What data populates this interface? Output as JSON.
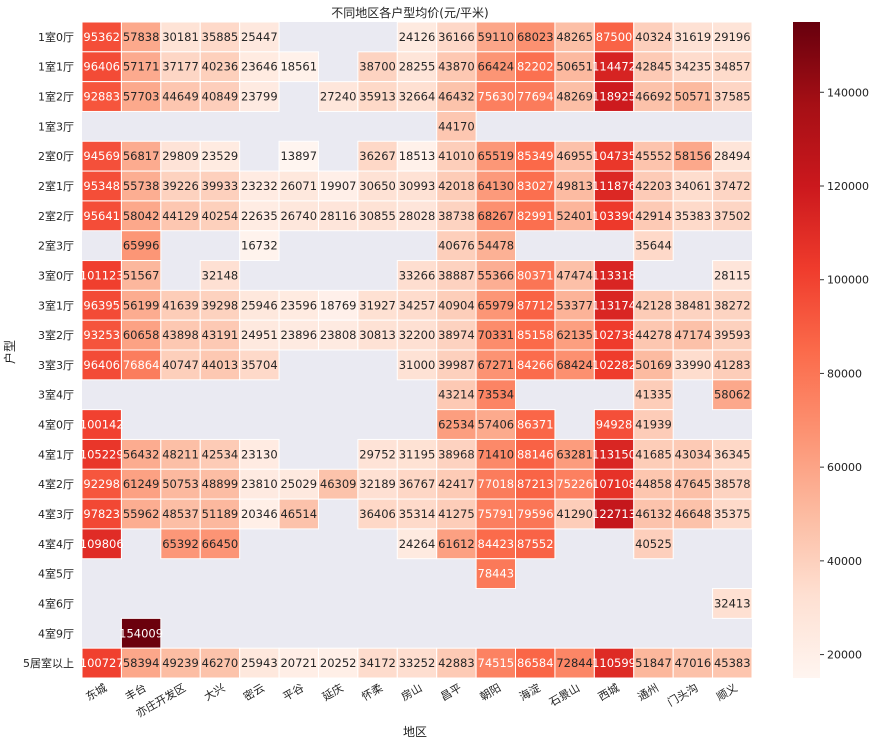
{
  "chart_data": {
    "type": "heatmap",
    "title": "不同地区各户型均价(元/平米)",
    "xlabel": "地区",
    "ylabel": "户型",
    "colormap": "Reds",
    "missing_color": "#eaeaf2",
    "colorbar_range": [
      15000,
      155000
    ],
    "colorbar_ticks": [
      20000,
      40000,
      60000,
      80000,
      100000,
      120000,
      140000
    ],
    "columns": [
      "东城",
      "丰台",
      "亦庄开发区",
      "大兴",
      "密云",
      "平谷",
      "延庆",
      "怀柔",
      "房山",
      "昌平",
      "朝阳",
      "海淀",
      "石景山",
      "西城",
      "通州",
      "门头沟",
      "顺义"
    ],
    "rows": [
      "1室0厅",
      "1室1厅",
      "1室2厅",
      "1室3厅",
      "2室0厅",
      "2室1厅",
      "2室2厅",
      "2室3厅",
      "3室0厅",
      "3室1厅",
      "3室2厅",
      "3室3厅",
      "3室4厅",
      "4室0厅",
      "4室1厅",
      "4室2厅",
      "4室3厅",
      "4室4厅",
      "4室5厅",
      "4室6厅",
      "4室9厅",
      "5居室以上"
    ],
    "values": [
      [
        95362,
        57838,
        30181,
        35885,
        25447,
        null,
        null,
        null,
        24126,
        36166,
        59110,
        68023,
        48265,
        87500,
        40324,
        31619,
        29196
      ],
      [
        96406,
        57171,
        37177,
        40236,
        23646,
        18561,
        null,
        38700,
        28255,
        43870,
        66424,
        82202,
        50651,
        114472,
        42845,
        34235,
        34857
      ],
      [
        92883,
        57703,
        44649,
        40849,
        23799,
        null,
        27240,
        35913,
        32664,
        46432,
        75630,
        77694,
        48269,
        118925,
        46692,
        50571,
        37585
      ],
      [
        null,
        null,
        null,
        null,
        null,
        null,
        null,
        null,
        null,
        44170,
        null,
        null,
        null,
        null,
        null,
        null,
        null
      ],
      [
        94569,
        56817,
        29809,
        23529,
        null,
        13897,
        null,
        36267,
        18513,
        41010,
        65519,
        85349,
        46955,
        104735,
        45552,
        58156,
        28494
      ],
      [
        95348,
        55738,
        39226,
        39933,
        23232,
        26071,
        19907,
        30650,
        30993,
        42018,
        64130,
        83027,
        49813,
        111876,
        42203,
        34061,
        37472
      ],
      [
        95641,
        58042,
        44129,
        40254,
        22635,
        26740,
        28116,
        30855,
        28028,
        38738,
        68267,
        82991,
        52401,
        103390,
        42914,
        35383,
        37502
      ],
      [
        null,
        65996,
        null,
        null,
        16732,
        null,
        null,
        null,
        null,
        40676,
        54478,
        null,
        null,
        null,
        35644,
        null,
        null
      ],
      [
        101123,
        51567,
        null,
        32148,
        null,
        null,
        null,
        null,
        33266,
        38887,
        55366,
        80371,
        47474,
        113318,
        null,
        null,
        28115
      ],
      [
        96395,
        56199,
        41639,
        39298,
        25946,
        23596,
        18769,
        31927,
        34257,
        40904,
        65979,
        87712,
        53377,
        113174,
        42128,
        38481,
        38272
      ],
      [
        93253,
        60658,
        43898,
        43191,
        24951,
        23896,
        23808,
        30813,
        32200,
        38974,
        70331,
        85158,
        62135,
        102738,
        44278,
        47174,
        39593
      ],
      [
        96406,
        76864,
        40747,
        44013,
        35704,
        null,
        null,
        null,
        31000,
        39987,
        67271,
        84266,
        68424,
        102282,
        50169,
        33990,
        41283
      ],
      [
        null,
        null,
        null,
        null,
        null,
        null,
        null,
        null,
        null,
        43214,
        73534,
        null,
        null,
        null,
        41335,
        null,
        58062
      ],
      [
        100142,
        null,
        null,
        null,
        null,
        null,
        null,
        null,
        null,
        62534,
        57406,
        86371,
        null,
        94928,
        41939,
        null,
        null
      ],
      [
        105229,
        56432,
        48211,
        42534,
        23130,
        null,
        null,
        29752,
        31195,
        38968,
        71410,
        88146,
        63281,
        113150,
        41685,
        43034,
        36345
      ],
      [
        92298,
        61249,
        50753,
        48899,
        23810,
        25029,
        46309,
        32189,
        36767,
        42417,
        77018,
        87213,
        75226,
        107108,
        44858,
        47645,
        38578
      ],
      [
        97823,
        55962,
        48537,
        51189,
        20346,
        46514,
        null,
        36406,
        35314,
        41275,
        75791,
        79596,
        41290,
        122713,
        46132,
        46648,
        35375
      ],
      [
        109806,
        null,
        65392,
        66450,
        null,
        null,
        null,
        null,
        24264,
        61612,
        84423,
        87552,
        null,
        null,
        40525,
        null,
        null
      ],
      [
        null,
        null,
        null,
        null,
        null,
        null,
        null,
        null,
        null,
        null,
        78443,
        null,
        null,
        null,
        null,
        null,
        null
      ],
      [
        null,
        null,
        null,
        null,
        null,
        null,
        null,
        null,
        null,
        null,
        null,
        null,
        null,
        null,
        null,
        null,
        32413
      ],
      [
        null,
        154009,
        null,
        null,
        null,
        null,
        null,
        null,
        null,
        null,
        null,
        null,
        null,
        null,
        null,
        null,
        null
      ],
      [
        100727,
        58394,
        49239,
        46270,
        25943,
        20721,
        20252,
        34172,
        33252,
        42883,
        74515,
        86584,
        72844,
        110599,
        51847,
        47016,
        45383
      ]
    ]
  }
}
